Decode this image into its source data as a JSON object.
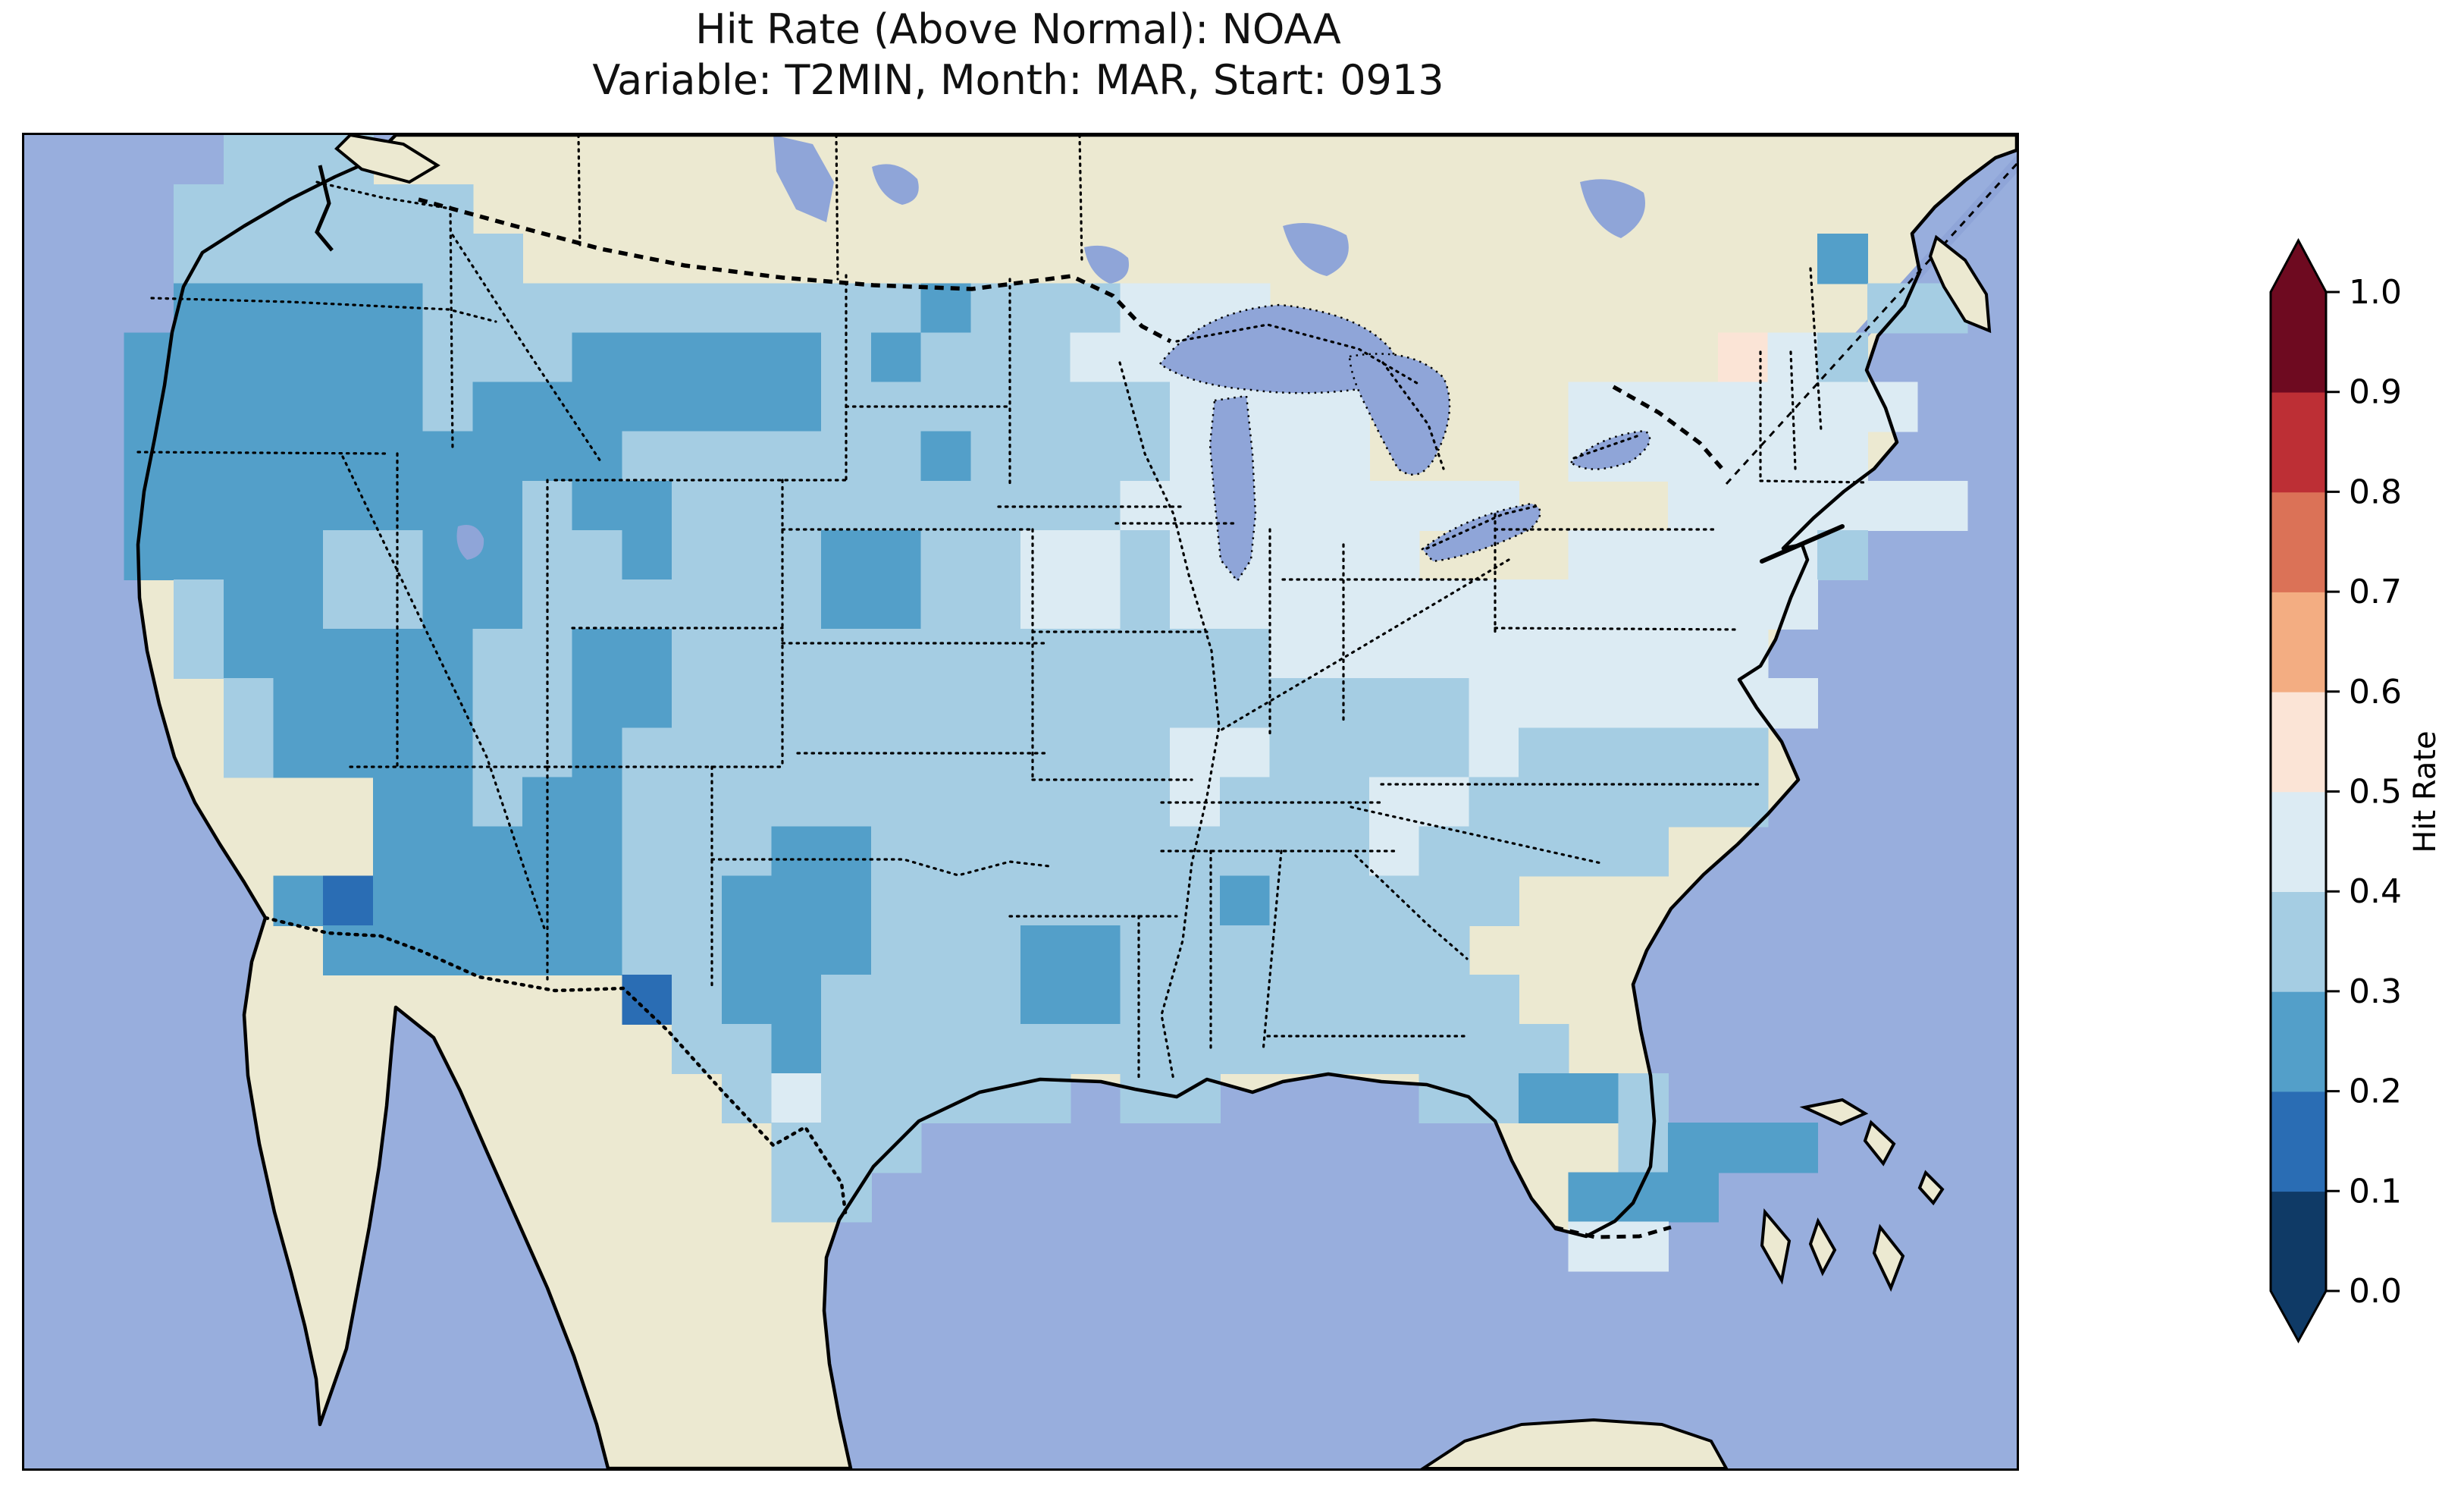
{
  "title": {
    "line1": "Hit Rate (Above Normal): NOAA",
    "line2": "Variable: T2MIN, Month: MAR, Start: 0913"
  },
  "colorbar": {
    "label": "Hit Rate",
    "tick_labels": [
      "0.0",
      "0.1",
      "0.2",
      "0.3",
      "0.4",
      "0.5",
      "0.6",
      "0.7",
      "0.8",
      "0.9",
      "1.0"
    ],
    "extend": "both"
  },
  "map": {
    "colors": {
      "ocean": "#98aedd",
      "land": "#ece9d1",
      "lake": "#8fa5d8",
      "coastline": "#000000",
      "border": "#000000",
      "frame": "#000000"
    }
  },
  "chart_data": {
    "type": "heatmap",
    "title": "Hit Rate (Above Normal): NOAA",
    "subtitle": "Variable: T2MIN, Month: MAR, Start: 0913",
    "source_label": "NOAA",
    "variable": "T2MIN",
    "month": "MAR",
    "start": "0913",
    "region": "Contiguous United States (lat/lon gridded cells over a Lambert-style map)",
    "value_name": "Hit Rate",
    "value_range": [
      0.0,
      1.0
    ],
    "colormap": "RdBu_r (10 discrete bins, extend arrows both ends)",
    "bins": [
      [
        0.0,
        0.1
      ],
      [
        0.1,
        0.2
      ],
      [
        0.2,
        0.3
      ],
      [
        0.3,
        0.4
      ],
      [
        0.4,
        0.5
      ],
      [
        0.5,
        0.6
      ],
      [
        0.6,
        0.7
      ],
      [
        0.7,
        0.8
      ],
      [
        0.8,
        0.9
      ],
      [
        0.9,
        1.0
      ]
    ],
    "bin_colors": [
      "#0f3a66",
      "#2a6db4",
      "#539fc9",
      "#a5cde3",
      "#dcebf3",
      "#fbe4d6",
      "#f3ad82",
      "#db7257",
      "#bd2f35",
      "#6e0a20"
    ],
    "observed_pattern": "West (OR/NV/UT/AZ/western CO-NM/ID-MT bands) 0.2-0.3; dark 0.1-0.2 spots in S Arizona and El Paso; Plains and South mostly 0.3-0.4; upper Midwest, Ohio Valley and Northeast 0.4-0.5; one 0.5-0.6 cell near VT/NY border; N Maine tip 0.2-0.3; Florida peninsula 0.2-0.3",
    "grid": {
      "note": "Coarse recreation of the gridded field. Each character = one cell; '.' = no data (outside CONUS); digit = bin index into bins/bin_colors (e.g. 3 means hit rate 0.3-0.4).",
      "cols": 40,
      "rows": 27,
      "cell_codes": [
        "....333.................................",
        "...333333...............................",
        "...3333333..........................2...",
        "...22222333333333323334 44............33..",
        "..2222223332222232333444..4.......543...",
        "..2222223222222233333334444....4444444..",
        "..222222222233333323333 4444....444444...",
        "..2222222232233333333344444444...444444...",
        "..222233223323332233443444 44...444443...",
        "...32233223333332233443444 4444444444....",
        "...322222332233333333333344444 44444.....",
        "....32222332233333333333333334444444.....",
        "....32222332333333333334433334 33333.....",
        ".......22322333333333334333443 33333.....",
        ".......22222333223333333333433 333.......",
        ".....212222233222333333323333 3..........",
        "......22222233222333223333333...........",
        "............13223333223333333 3..........",
        ".............33233333333333333 3.........",
        "..............3433333.33....33223.......",
        "...............333..............3222....",
        "...............33..............222......",
        "...............................44.......",
        "........................................",
        "........................................",
        "........................................",
        "........................................"
      ]
    },
    "colorbar": {
      "label": "Hit Rate",
      "ticks": [
        0.0,
        0.1,
        0.2,
        0.3,
        0.4,
        0.5,
        0.6,
        0.7,
        0.8,
        0.9,
        1.0
      ],
      "position": "right",
      "orientation": "vertical",
      "extend": "both"
    },
    "layout_hints": {
      "grid_lines": "off",
      "state_borders": "black dotted",
      "coastlines": "black solid",
      "background_land": "beige",
      "background_ocean": "periwinkle blue"
    }
  }
}
